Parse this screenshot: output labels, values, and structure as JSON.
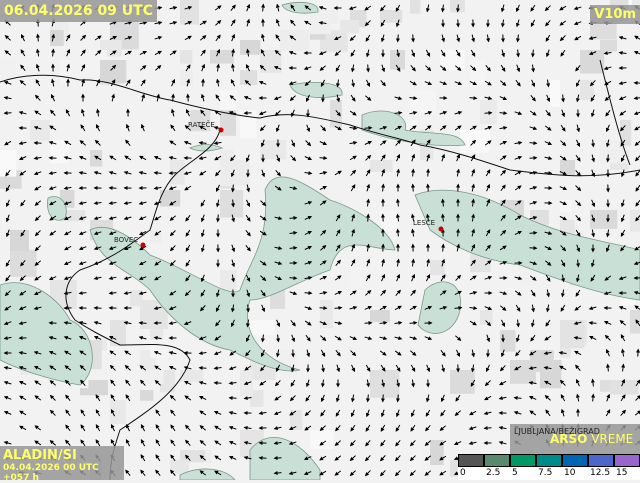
{
  "header": {
    "valid_time": "06.04.2026 09 UTC",
    "variable": "V10m"
  },
  "model": {
    "name": "ALADIN/SI",
    "run": "04.04.2026 00 UTC +057 h"
  },
  "brand": {
    "station": "LJUBLJANA/BEŽIGRAD",
    "logo_bold": "ARSO",
    "logo_rest": " VREME"
  },
  "cities": [
    {
      "name": "RATEČE"
    },
    {
      "name": "BOVEC"
    },
    {
      "name": "LESCE"
    }
  ],
  "legend": {
    "unit_values": [
      "0",
      "2.5",
      "5",
      "7.5",
      "10",
      "12.5",
      "15"
    ],
    "colors": [
      "#555555",
      "#5a8a6e",
      "#009966",
      "#008b8b",
      "#0066b3",
      "#4d66cc",
      "#9966cc"
    ]
  },
  "colors": {
    "shaded_area": "#c8e0d6",
    "background": "#f2f2f2",
    "text_accent": "#ffff66"
  }
}
